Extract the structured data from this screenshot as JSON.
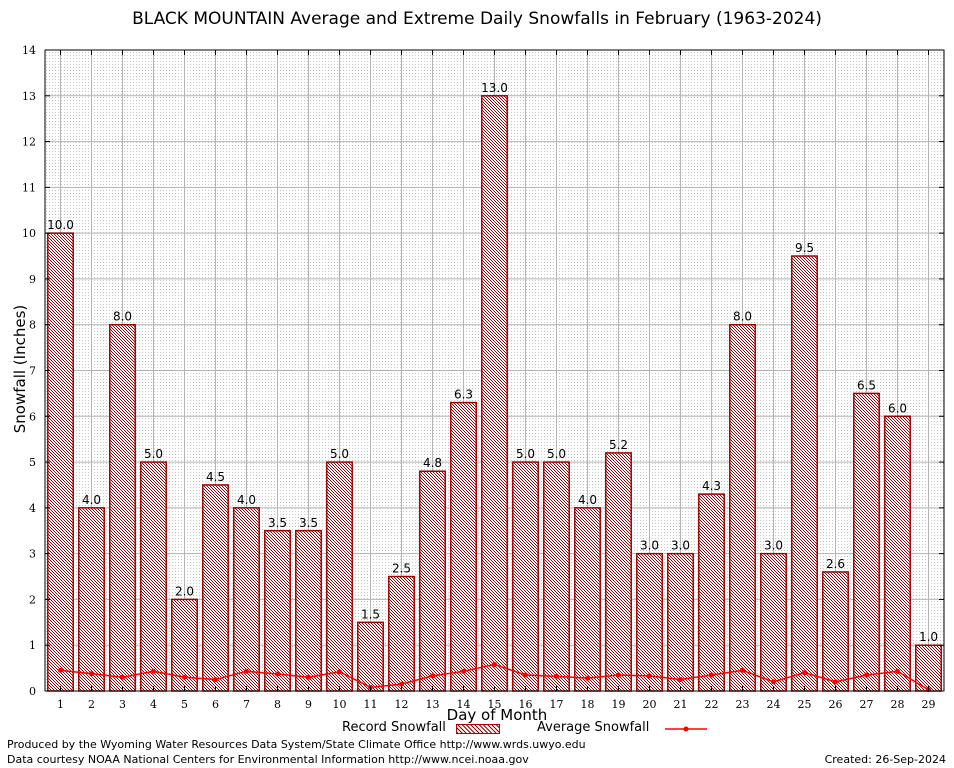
{
  "chart_data": {
    "type": "bar",
    "title": "BLACK MOUNTAIN Average and Extreme Daily Snowfalls in February (1963-2024)",
    "xlabel": "Day of Month",
    "ylabel": "Snowfall (Inches)",
    "ylim": [
      0,
      14
    ],
    "yticks": [
      0,
      1,
      2,
      3,
      4,
      5,
      6,
      7,
      8,
      9,
      10,
      11,
      12,
      13,
      14
    ],
    "grid": true,
    "categories": [
      "1",
      "2",
      "3",
      "4",
      "5",
      "6",
      "7",
      "8",
      "9",
      "10",
      "11",
      "12",
      "13",
      "14",
      "15",
      "16",
      "17",
      "18",
      "19",
      "20",
      "21",
      "22",
      "23",
      "24",
      "25",
      "26",
      "27",
      "28",
      "29"
    ],
    "series": [
      {
        "name": "Record Snowfall",
        "values": [
          10.0,
          4.0,
          8.0,
          5.0,
          2.0,
          4.5,
          4.0,
          3.5,
          3.5,
          5.0,
          1.5,
          2.5,
          4.8,
          6.3,
          13.0,
          5.0,
          5.0,
          4.0,
          5.2,
          3.0,
          3.0,
          4.3,
          8.0,
          3.0,
          9.5,
          2.6,
          6.5,
          6.0,
          1.0
        ],
        "labels": [
          "10.0",
          "4.0",
          "8.0",
          "5.0",
          "2.0",
          "4.5",
          "4.0",
          "3.5",
          "3.5",
          "5.0",
          "1.5",
          "2.5",
          "4.8",
          "6.3",
          "13.0",
          "5.0",
          "5.0",
          "4.0",
          "5.2",
          "3.0",
          "3.0",
          "4.3",
          "8.0",
          "3.0",
          "9.5",
          "2.6",
          "6.5",
          "6.0",
          "1.0"
        ],
        "color": "#a00000"
      },
      {
        "name": "Average Snowfall",
        "values": [
          0.45,
          0.38,
          0.3,
          0.43,
          0.3,
          0.25,
          0.43,
          0.37,
          0.3,
          0.42,
          0.08,
          0.15,
          0.33,
          0.43,
          0.58,
          0.35,
          0.32,
          0.28,
          0.35,
          0.33,
          0.25,
          0.35,
          0.45,
          0.2,
          0.4,
          0.2,
          0.35,
          0.43,
          0.03
        ],
        "color": "#ff0000"
      }
    ],
    "legend_position": "bottom"
  },
  "footer": {
    "left_line1": "Produced by the Wyoming Water Resources Data System/State Climate Office http://www.wrds.uwyo.edu",
    "left_line2": "Data courtesy NOAA National Centers for Environmental Information http://www.ncei.noaa.gov",
    "created": "Created:  26-Sep-2024"
  }
}
